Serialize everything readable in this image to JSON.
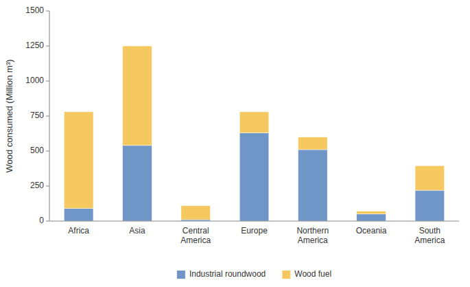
{
  "chart_data": {
    "type": "bar",
    "stacked": true,
    "categories": [
      "Africa",
      "Asia",
      "Central\nAmerica",
      "Europe",
      "Northern\nAmerica",
      "Oceania",
      "South\nAmerica"
    ],
    "series": [
      {
        "name": "Industrial roundwood",
        "color": "#7096C8",
        "values": [
          90,
          540,
          10,
          630,
          510,
          50,
          220
        ]
      },
      {
        "name": "Wood fuel",
        "color": "#F5C860",
        "values": [
          690,
          710,
          100,
          150,
          90,
          20,
          175
        ]
      }
    ],
    "ylabel": "Wood consumed (Million m³)",
    "ylim": [
      0,
      1500
    ],
    "yticks": [
      0,
      250,
      500,
      750,
      1000,
      1250,
      1500
    ],
    "grid": false,
    "legend": "bottom"
  }
}
